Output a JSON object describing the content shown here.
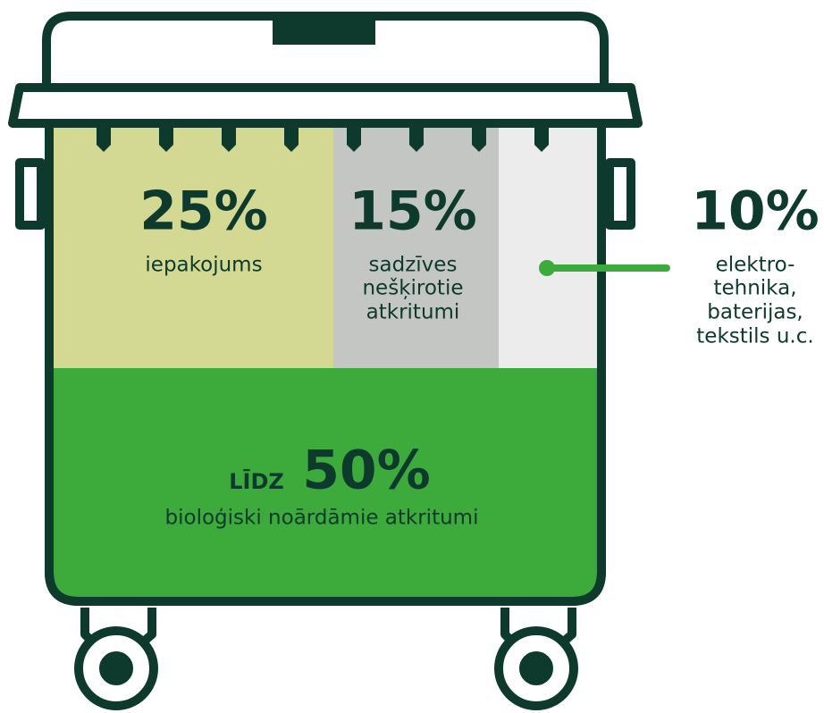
{
  "segments": [
    {
      "value": "25%",
      "lines": [
        "iepakojums"
      ]
    },
    {
      "value": "15%",
      "lines": [
        "sadzīves",
        "nešķirotie",
        "atkritumi"
      ]
    },
    {
      "value": "10%",
      "lines": [
        "elektro-",
        "tehnika,",
        "baterijas,",
        "tekstils u.c."
      ]
    },
    {
      "prefix": "LĪDZ",
      "value": "50%",
      "lines": [
        "bioloģiski noārdāmie atkritumi"
      ]
    }
  ]
}
